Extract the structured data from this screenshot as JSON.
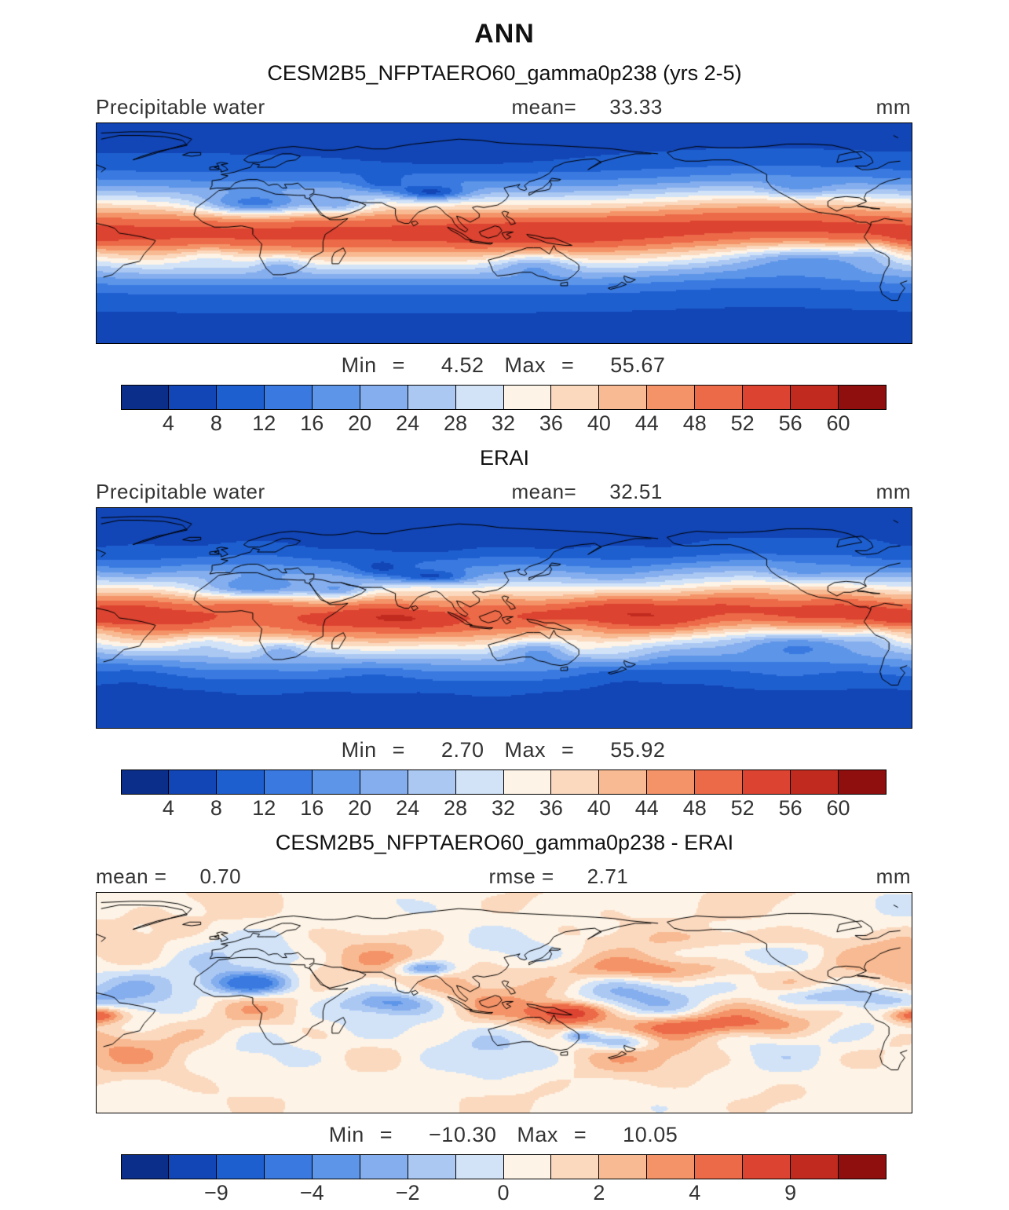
{
  "chart_data": {
    "type": "map",
    "projection": "equirectangular",
    "lon_range": [
      -60,
      300
    ],
    "lat_range": [
      -90,
      90
    ],
    "suptitle": "ANN",
    "palette": [
      "#0b2e8a",
      "#1245b5",
      "#1e5fd0",
      "#3a7ae0",
      "#5d95e8",
      "#85aeee",
      "#abc8f3",
      "#d2e3f8",
      "#fdf3e6",
      "#fbd9bf",
      "#f8ba92",
      "#f49368",
      "#ec6a48",
      "#dc4331",
      "#c02a1f",
      "#8f0e0e"
    ],
    "panels": [
      {
        "title": "CESM2B5_NFPTAERO60_gamma0p238 (yrs 2-5)",
        "hdr_left_label": "Precipitable water",
        "hdr_left_value": "",
        "hdr_center_label": "mean=",
        "hdr_center_value": "33.33",
        "units": "mm",
        "min_label": "Min",
        "eq": "=",
        "min_value": "4.52",
        "max_label": "Max",
        "max_value": "55.67",
        "colorbar": {
          "levels": [
            4,
            8,
            12,
            16,
            20,
            24,
            28,
            32,
            36,
            40,
            44,
            48,
            52,
            56,
            60
          ],
          "tick_labels": [
            "4",
            "8",
            "12",
            "16",
            "20",
            "24",
            "28",
            "32",
            "36",
            "40",
            "44",
            "48",
            "52",
            "56",
            "60"
          ]
        }
      },
      {
        "title": "ERAI",
        "hdr_left_label": "Precipitable water",
        "hdr_left_value": "",
        "hdr_center_label": "mean=",
        "hdr_center_value": "32.51",
        "units": "mm",
        "min_label": "Min",
        "eq": "=",
        "min_value": "2.70",
        "max_label": "Max",
        "max_value": "55.92",
        "colorbar": {
          "levels": [
            4,
            8,
            12,
            16,
            20,
            24,
            28,
            32,
            36,
            40,
            44,
            48,
            52,
            56,
            60
          ],
          "tick_labels": [
            "4",
            "8",
            "12",
            "16",
            "20",
            "24",
            "28",
            "32",
            "36",
            "40",
            "44",
            "48",
            "52",
            "56",
            "60"
          ]
        }
      },
      {
        "title": "CESM2B5_NFPTAERO60_gamma0p238 - ERAI",
        "hdr_left_label": "mean =",
        "hdr_left_value": "0.70",
        "hdr_center_label": "rmse =",
        "hdr_center_value": "2.71",
        "units": "mm",
        "min_label": "Min",
        "eq": "=",
        "min_value": "−10.30",
        "max_label": "Max",
        "max_value": "10.05",
        "colorbar": {
          "levels": [
            -12,
            -9,
            -6,
            -4,
            -3,
            -2,
            -1,
            0,
            1,
            2,
            3,
            4,
            6,
            9,
            12
          ],
          "tick_labels": [
            "",
            "−9",
            "",
            "−4",
            "",
            "−2",
            "",
            "0",
            "",
            "2",
            "",
            "4",
            "",
            "9",
            ""
          ]
        }
      }
    ]
  }
}
